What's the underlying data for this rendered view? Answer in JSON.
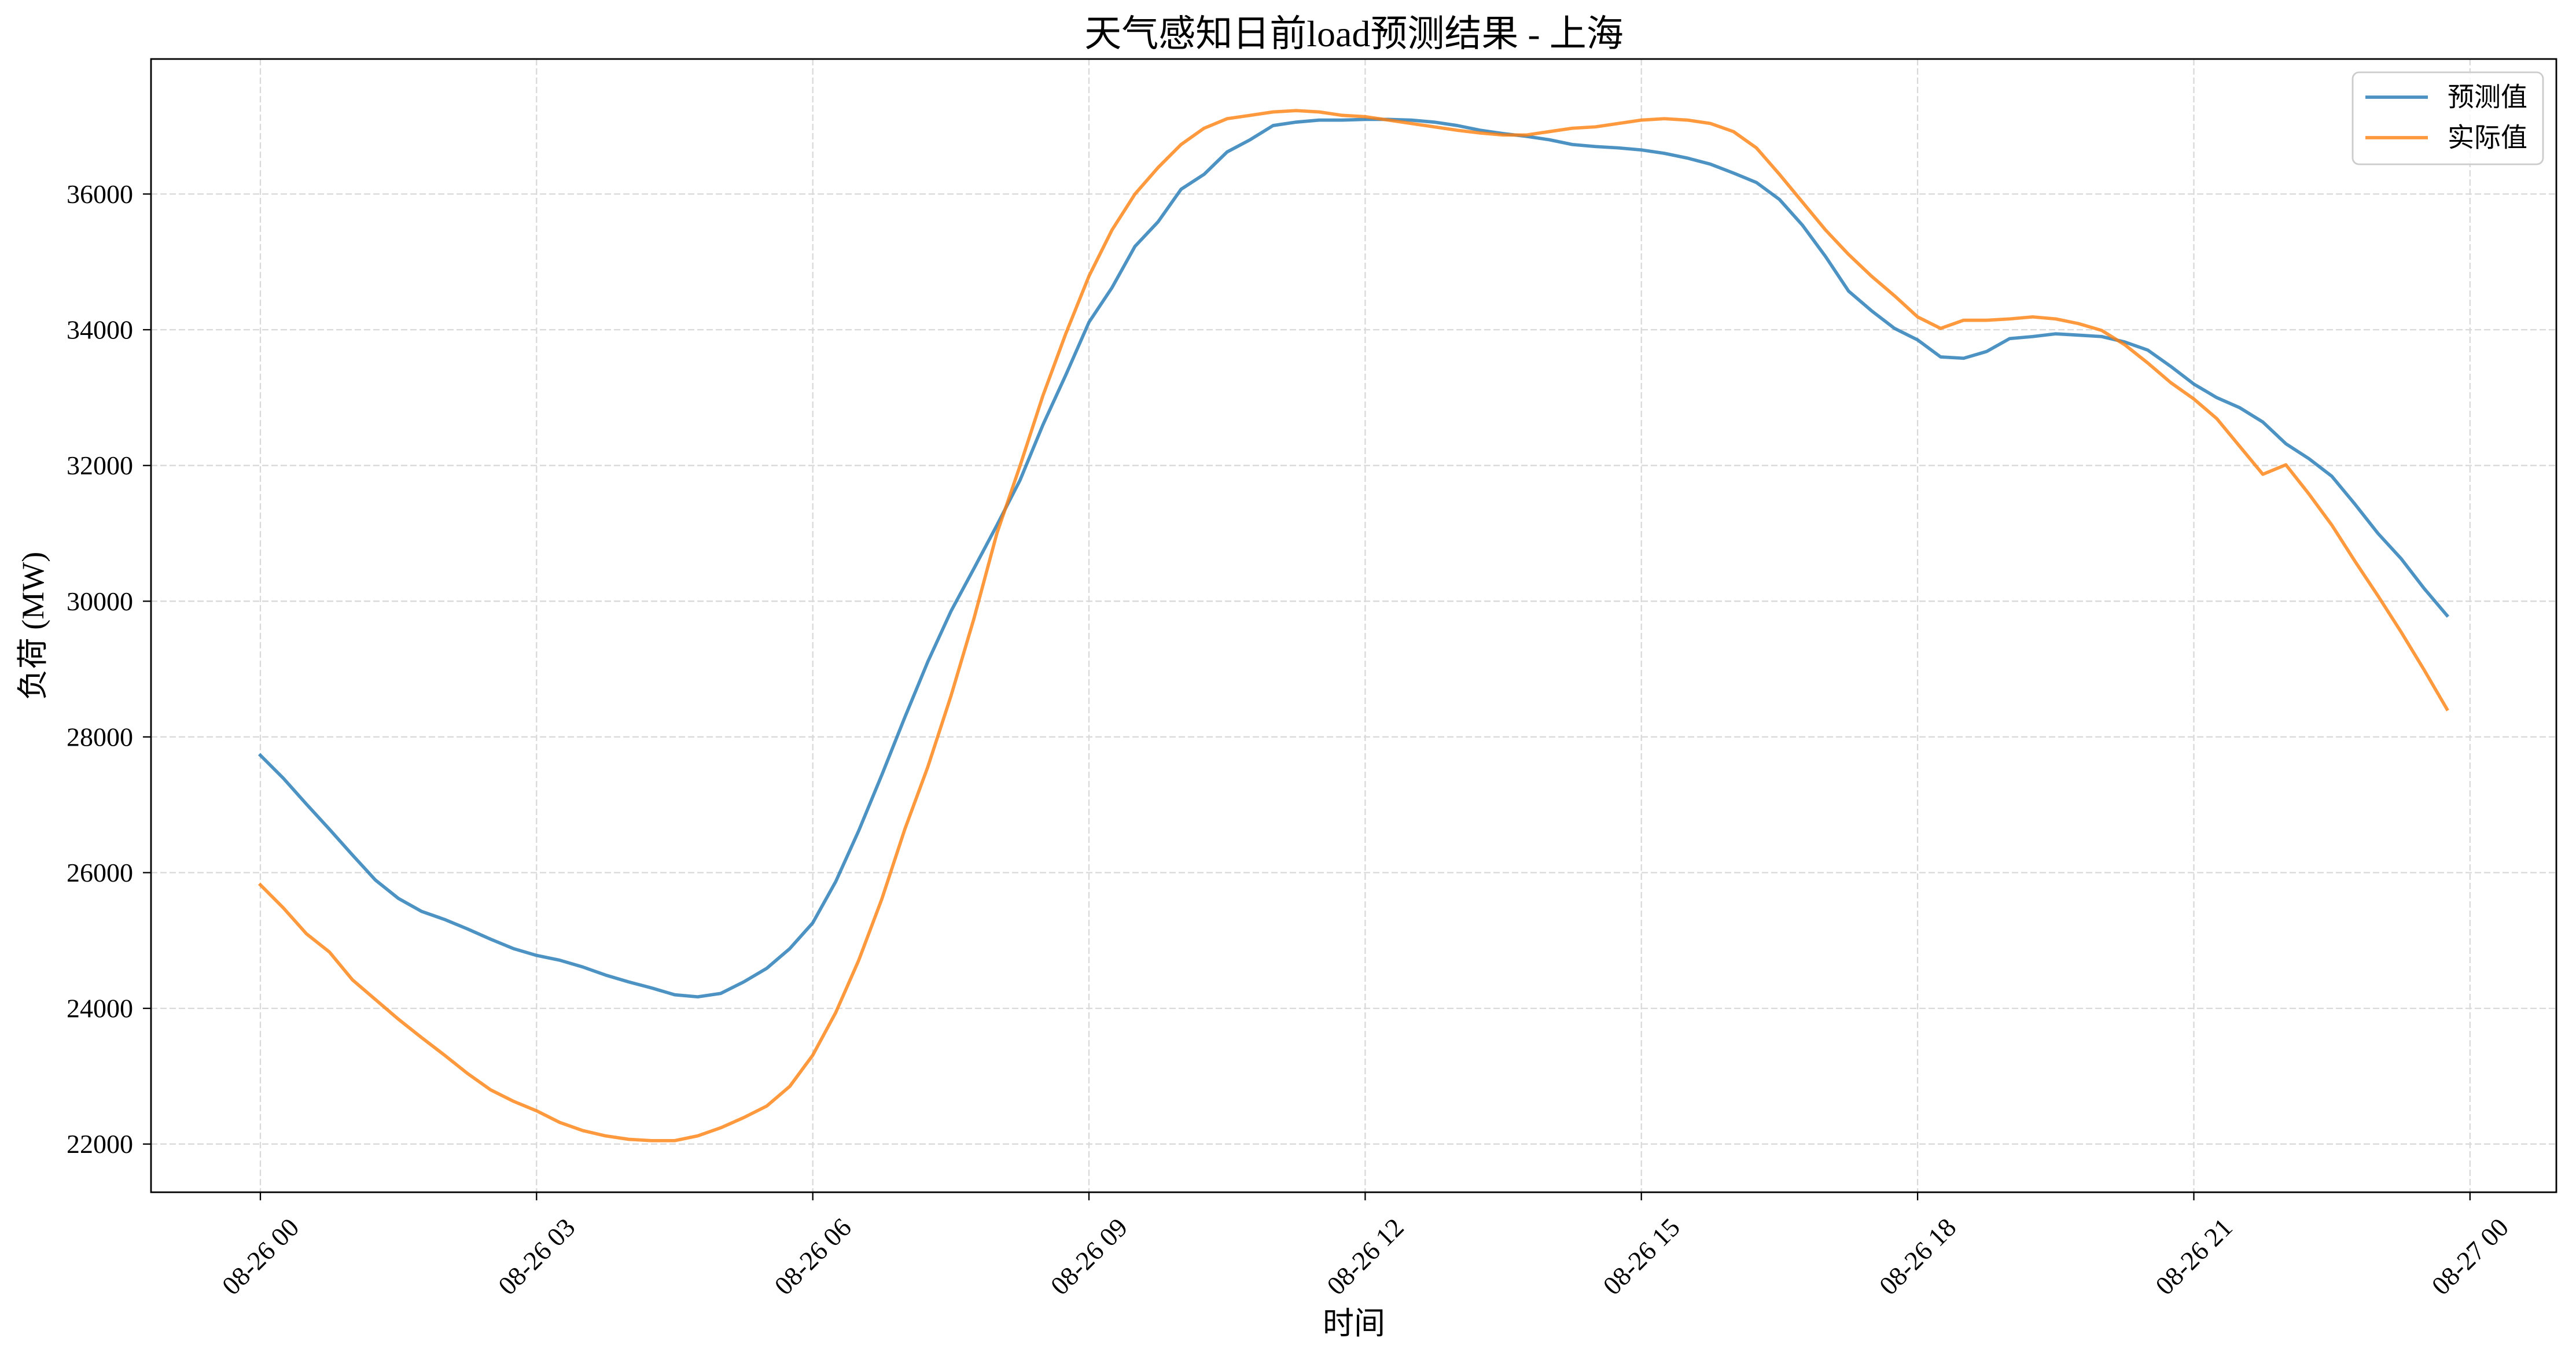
{
  "chart_data": {
    "type": "line",
    "title": "天气感知日前load预测结果 - 上海",
    "xlabel": "时间",
    "ylabel": "负荷 (MW)",
    "x": [
      "08-26 00:00",
      "08-26 00:15",
      "08-26 00:30",
      "08-26 00:45",
      "08-26 01:00",
      "08-26 01:15",
      "08-26 01:30",
      "08-26 01:45",
      "08-26 02:00",
      "08-26 02:15",
      "08-26 02:30",
      "08-26 02:45",
      "08-26 03:00",
      "08-26 03:15",
      "08-26 03:30",
      "08-26 03:45",
      "08-26 04:00",
      "08-26 04:15",
      "08-26 04:30",
      "08-26 04:45",
      "08-26 05:00",
      "08-26 05:15",
      "08-26 05:30",
      "08-26 05:45",
      "08-26 06:00",
      "08-26 06:15",
      "08-26 06:30",
      "08-26 06:45",
      "08-26 07:00",
      "08-26 07:15",
      "08-26 07:30",
      "08-26 07:45",
      "08-26 08:00",
      "08-26 08:15",
      "08-26 08:30",
      "08-26 08:45",
      "08-26 09:00",
      "08-26 09:15",
      "08-26 09:30",
      "08-26 09:45",
      "08-26 10:00",
      "08-26 10:15",
      "08-26 10:30",
      "08-26 10:45",
      "08-26 11:00",
      "08-26 11:15",
      "08-26 11:30",
      "08-26 11:45",
      "08-26 12:00",
      "08-26 12:15",
      "08-26 12:30",
      "08-26 12:45",
      "08-26 13:00",
      "08-26 13:15",
      "08-26 13:30",
      "08-26 13:45",
      "08-26 14:00",
      "08-26 14:15",
      "08-26 14:30",
      "08-26 14:45",
      "08-26 15:00",
      "08-26 15:15",
      "08-26 15:30",
      "08-26 15:45",
      "08-26 16:00",
      "08-26 16:15",
      "08-26 16:30",
      "08-26 16:45",
      "08-26 17:00",
      "08-26 17:15",
      "08-26 17:30",
      "08-26 17:45",
      "08-26 18:00",
      "08-26 18:15",
      "08-26 18:30",
      "08-26 18:45",
      "08-26 19:00",
      "08-26 19:15",
      "08-26 19:30",
      "08-26 19:45",
      "08-26 20:00",
      "08-26 20:15",
      "08-26 20:30",
      "08-26 20:45",
      "08-26 21:00",
      "08-26 21:15",
      "08-26 21:30",
      "08-26 21:45",
      "08-26 22:00",
      "08-26 22:15",
      "08-26 22:30",
      "08-26 22:45",
      "08-26 23:00",
      "08-26 23:15",
      "08-26 23:30",
      "08-26 23:45"
    ],
    "series": [
      {
        "name": "预测值",
        "color": "#1f77b4",
        "values": [
          27730,
          27390,
          27010,
          26640,
          26260,
          25890,
          25620,
          25430,
          25310,
          25170,
          25020,
          24880,
          24780,
          24710,
          24610,
          24490,
          24390,
          24300,
          24200,
          24170,
          24220,
          24390,
          24590,
          24880,
          25260,
          25870,
          26620,
          27440,
          28290,
          29110,
          29850,
          30480,
          31120,
          31780,
          32600,
          33340,
          34110,
          34620,
          35230,
          35590,
          36070,
          36290,
          36620,
          36800,
          37010,
          37060,
          37090,
          37090,
          37100,
          37100,
          37090,
          37060,
          37010,
          36940,
          36890,
          36850,
          36800,
          36730,
          36700,
          36680,
          36650,
          36600,
          36530,
          36440,
          36310,
          36170,
          35920,
          35540,
          35080,
          34570,
          34280,
          34020,
          33850,
          33600,
          33580,
          33680,
          33870,
          33900,
          33940,
          33920,
          33900,
          33820,
          33700,
          33460,
          33200,
          33000,
          32850,
          32640,
          32320,
          32100,
          31840,
          31430,
          31000,
          30630,
          30190,
          29790
        ]
      },
      {
        "name": "实际值",
        "color": "#ff7f0e",
        "values": [
          25820,
          25480,
          25100,
          24830,
          24420,
          24130,
          23840,
          23570,
          23310,
          23040,
          22800,
          22630,
          22490,
          22320,
          22200,
          22120,
          22070,
          22050,
          22050,
          22120,
          22240,
          22390,
          22560,
          22850,
          23310,
          23940,
          24710,
          25610,
          26640,
          27560,
          28600,
          29740,
          31000,
          31990,
          33030,
          33950,
          34790,
          35470,
          36000,
          36390,
          36730,
          36970,
          37110,
          37160,
          37210,
          37230,
          37210,
          37160,
          37140,
          37090,
          37040,
          36990,
          36940,
          36900,
          36870,
          36870,
          36920,
          36970,
          36990,
          37040,
          37090,
          37110,
          37090,
          37040,
          36920,
          36680,
          36290,
          35880,
          35470,
          35110,
          34790,
          34500,
          34190,
          34020,
          34140,
          34140,
          34160,
          34190,
          34160,
          34090,
          33990,
          33780,
          33510,
          33220,
          32980,
          32690,
          32280,
          31870,
          32010,
          31580,
          31120,
          30590,
          30080,
          29550,
          28990,
          28410
        ]
      }
    ],
    "x_ticks": [
      "08-26 00",
      "08-26 03",
      "08-26 06",
      "08-26 09",
      "08-26 12",
      "08-26 15",
      "08-26 18",
      "08-26 21",
      "08-27 00"
    ],
    "y_ticks": [
      22000,
      24000,
      26000,
      28000,
      30000,
      32000,
      34000,
      36000
    ],
    "xlim": [
      "08-25 22:48:45",
      "08-27 00:56:15"
    ],
    "ylim": [
      21290,
      37990
    ],
    "grid": true,
    "legend": "top-right"
  }
}
